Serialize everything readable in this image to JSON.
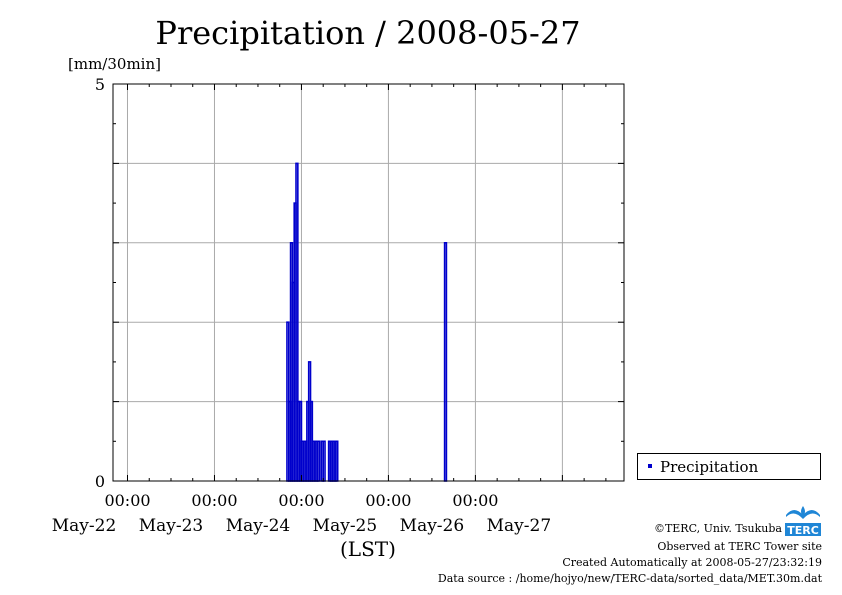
{
  "chart_data": {
    "type": "bar",
    "title": "Precipitation / 2008-05-27",
    "ylabel": "[mm/30min]",
    "xlabel": "(LST)",
    "ylim": [
      0,
      5
    ],
    "y_tick_labels": [
      "0",
      "5"
    ],
    "x_range_hours": [
      -52,
      89
    ],
    "time_tick_labels": [
      "00:00",
      "00:00",
      "00:00",
      "00:00",
      "00:00"
    ],
    "date_labels": [
      "May-22",
      "May-23",
      "May-24",
      "May-25",
      "May-26",
      "May-27"
    ],
    "grid": true,
    "legend_position": "bottom-right",
    "series": [
      {
        "name": "Precipitation",
        "color": "#0000cc",
        "x_hours": [
          -3.5,
          -3.0,
          -2.5,
          -2.0,
          -1.5,
          -1.0,
          -0.5,
          0.0,
          0.5,
          1.0,
          1.5,
          2.0,
          2.5,
          3.0,
          3.5,
          4.0,
          4.5,
          5.0,
          6.0,
          6.5,
          8.0,
          8.5,
          9.0,
          9.5,
          10.0,
          40.0
        ],
        "values": [
          2.0,
          1.0,
          3.0,
          2.5,
          3.5,
          4.0,
          1.0,
          1.0,
          0.5,
          0.5,
          0.5,
          1.0,
          1.5,
          1.0,
          0.5,
          0.5,
          0.5,
          0.5,
          0.5,
          0.5,
          0.5,
          0.5,
          0.5,
          0.5,
          0.5,
          3.0
        ]
      }
    ]
  },
  "footer": {
    "credit": "©TERC, Univ. Tsukuba",
    "site": "Observed at TERC Tower site",
    "created": "Created Automatically at 2008-05-27/23:32:19",
    "source": "Data source : /home/hojyo/new/TERC-data/sorted_data/MET.30m.dat"
  },
  "logo": {
    "text": "TERC",
    "color": "#1f86d6"
  }
}
